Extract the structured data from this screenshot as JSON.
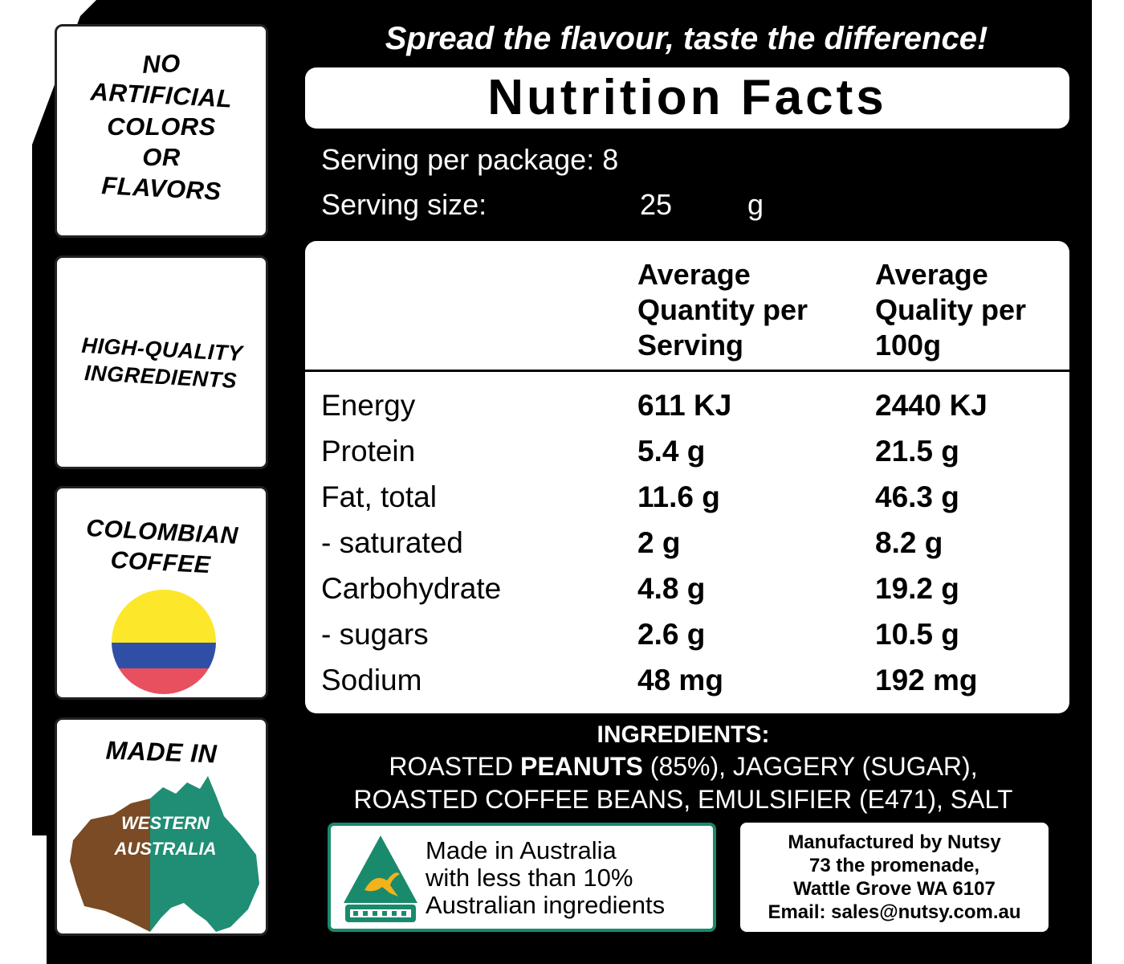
{
  "badges": {
    "no_artificial": [
      "NO",
      "ARTIFICIAL",
      "COLORS",
      "OR",
      "FLAVORS"
    ],
    "high_quality": [
      "HIGH-QUALITY",
      "INGREDIENTS"
    ],
    "colombian": [
      "COLOMBIAN",
      "COFFEE"
    ],
    "made_in": "MADE IN",
    "region": [
      "WESTERN",
      "AUSTRALIA"
    ]
  },
  "colors": {
    "label_background": "#000000",
    "flag_yellow": "#fce72b",
    "flag_blue": "#2f4fa6",
    "flag_red": "#e84f5f",
    "map_brown": "#7a4b24",
    "map_teal": "#1f8e74",
    "accent_green": "#1a8a6c"
  },
  "slogan": "Spread the flavour, taste the difference!",
  "title": "Nutrition Facts",
  "serving": {
    "per_package_label": "Serving per package: 8",
    "size_label": "Serving size:",
    "size_value": "25",
    "size_unit": "g"
  },
  "table": {
    "headers": {
      "col1": [
        "Average",
        "Quantity per",
        "Serving"
      ],
      "col2": [
        "Average",
        "Quality per",
        "100g"
      ]
    },
    "rows": [
      {
        "name": "Energy",
        "per_serving": "611 KJ",
        "per_100g": "2440 KJ"
      },
      {
        "name": "Protein",
        "per_serving": "5.4 g",
        "per_100g": "21.5 g"
      },
      {
        "name": "Fat, total",
        "per_serving": "11.6 g",
        "per_100g": "46.3 g"
      },
      {
        "name": "- saturated",
        "per_serving": "2 g",
        "per_100g": "8.2 g"
      },
      {
        "name": "Carbohydrate",
        "per_serving": "4.8 g",
        "per_100g": "19.2 g"
      },
      {
        "name": "- sugars",
        "per_serving": "2.6 g",
        "per_100g": "10.5 g"
      },
      {
        "name": "Sodium",
        "per_serving": "48 mg",
        "per_100g": "192 mg"
      }
    ]
  },
  "ingredients": {
    "title": "INGREDIENTS:",
    "line1_prefix": "ROASTED ",
    "line1_bold": "PEANUTS",
    "line1_suffix": " (85%), JAGGERY (SUGAR),",
    "line2": "ROASTED COFFEE BEANS, EMULSIFIER (E471), SALT"
  },
  "made_in_australia": [
    "Made in Australia",
    "with less than 10%",
    "Australian ingredients"
  ],
  "manufacturer": [
    "Manufactured by Nutsy",
    "73 the promenade,",
    "Wattle Grove WA 6107",
    "Email: sales@nutsy.com.au"
  ]
}
